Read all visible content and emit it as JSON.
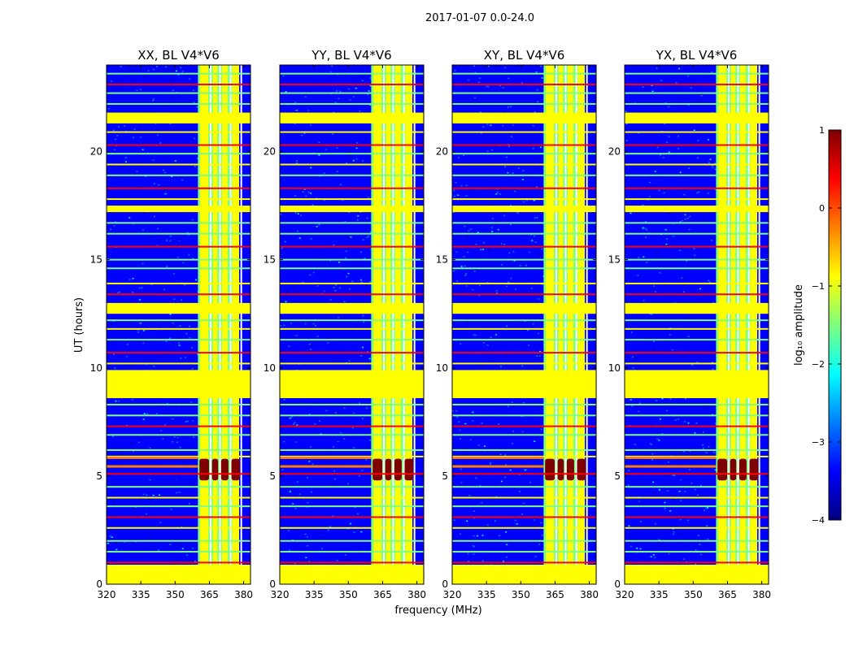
{
  "figure": {
    "suptitle": "2017-01-07 0.0-24.0",
    "ylabel": "UT (hours)",
    "xlabel": "frequency (MHz)"
  },
  "chart_data": [
    {
      "type": "heatmap",
      "title": "XX, BL V4*V6",
      "xlim": [
        320,
        383
      ],
      "ylim": [
        0,
        24
      ],
      "xticks": [
        "320",
        "335",
        "350",
        "365",
        "380"
      ],
      "xtick_values": [
        320,
        335,
        350,
        365,
        380
      ],
      "yticks": [
        "0",
        "5",
        "10",
        "15",
        "20"
      ],
      "ytick_values": [
        0,
        5,
        10,
        15,
        20
      ],
      "bright_band_mhz": [
        360,
        378
      ],
      "strong_burst_ut": [
        4.8,
        5.8
      ],
      "flagged_ut": [
        [
          0,
          0.9
        ],
        [
          8.6,
          9.9
        ],
        [
          12.5,
          13.0
        ],
        [
          17.2,
          17.5
        ],
        [
          21.3,
          21.8
        ]
      ]
    },
    {
      "type": "heatmap",
      "title": "YY, BL V4*V6",
      "xlim": [
        320,
        383
      ],
      "ylim": [
        0,
        24
      ],
      "xticks": [
        "320",
        "335",
        "350",
        "365",
        "380"
      ],
      "xtick_values": [
        320,
        335,
        350,
        365,
        380
      ],
      "yticks": [
        "0",
        "5",
        "10",
        "15",
        "20"
      ],
      "ytick_values": [
        0,
        5,
        10,
        15,
        20
      ],
      "bright_band_mhz": [
        360,
        378
      ],
      "strong_burst_ut": [
        4.8,
        5.8
      ],
      "flagged_ut": [
        [
          0,
          0.9
        ],
        [
          8.6,
          9.9
        ],
        [
          12.5,
          13.0
        ],
        [
          17.2,
          17.5
        ],
        [
          21.3,
          21.8
        ]
      ]
    },
    {
      "type": "heatmap",
      "title": "XY, BL V4*V6",
      "xlim": [
        320,
        383
      ],
      "ylim": [
        0,
        24
      ],
      "xticks": [
        "320",
        "335",
        "350",
        "365",
        "380"
      ],
      "xtick_values": [
        320,
        335,
        350,
        365,
        380
      ],
      "yticks": [
        "0",
        "5",
        "10",
        "15",
        "20"
      ],
      "ytick_values": [
        0,
        5,
        10,
        15,
        20
      ],
      "bright_band_mhz": [
        360,
        378
      ],
      "strong_burst_ut": [
        4.8,
        5.8
      ],
      "flagged_ut": [
        [
          0,
          0.9
        ],
        [
          8.6,
          9.9
        ],
        [
          12.5,
          13.0
        ],
        [
          17.2,
          17.5
        ],
        [
          21.3,
          21.8
        ]
      ]
    },
    {
      "type": "heatmap",
      "title": "YX, BL V4*V6",
      "xlim": [
        320,
        383
      ],
      "ylim": [
        0,
        24
      ],
      "xticks": [
        "320",
        "335",
        "350",
        "365",
        "380"
      ],
      "xtick_values": [
        320,
        335,
        350,
        365,
        380
      ],
      "yticks": [
        "0",
        "5",
        "10",
        "15",
        "20"
      ],
      "ytick_values": [
        0,
        5,
        10,
        15,
        20
      ],
      "bright_band_mhz": [
        360,
        378
      ],
      "strong_burst_ut": [
        4.8,
        5.8
      ],
      "flagged_ut": [
        [
          0,
          0.9
        ],
        [
          8.6,
          9.9
        ],
        [
          12.5,
          13.0
        ],
        [
          17.2,
          17.5
        ],
        [
          21.3,
          21.8
        ]
      ]
    }
  ],
  "colorbar": {
    "label": "log₁₀ amplitude",
    "range": [
      -4,
      1
    ],
    "ticks": [
      "1",
      "0",
      "−1",
      "−2",
      "−3",
      "−4"
    ],
    "tick_values": [
      1,
      0,
      -1,
      -2,
      -3,
      -4
    ],
    "colormap": "jet",
    "colors": [
      "#00007f",
      "#0000ff",
      "#007fff",
      "#00ffff",
      "#7fff7f",
      "#ffff00",
      "#ff7f00",
      "#ff0000",
      "#7f0000"
    ]
  }
}
